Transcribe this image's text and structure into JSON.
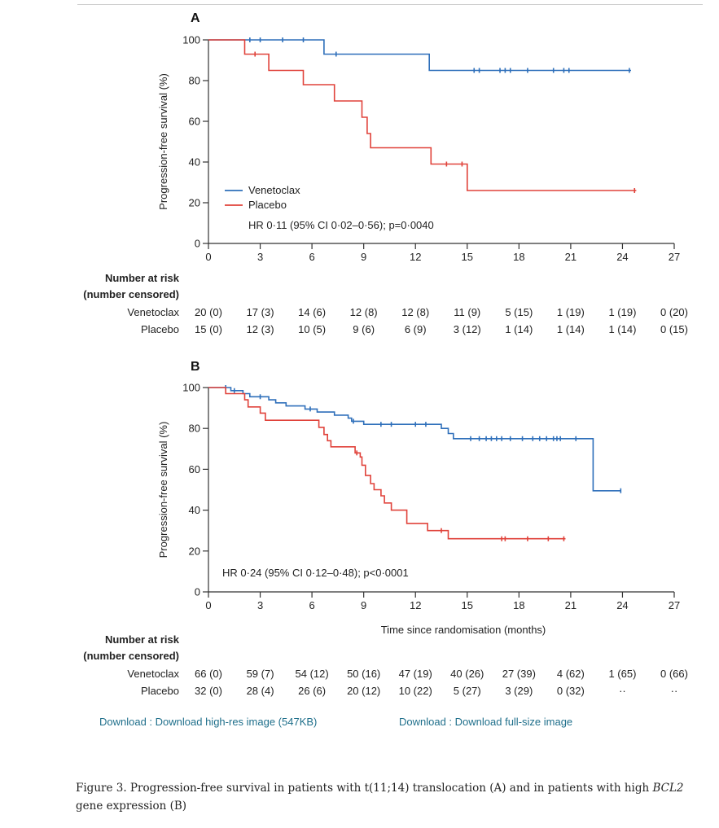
{
  "download": {
    "highres_label": "Download : Download high-res image (547KB)",
    "fullsize_label": "Download : Download full-size image"
  },
  "caption": {
    "part1": "Figure 3. Progression-free survival in patients with t(11;14) translocation (A) and in patients with high ",
    "gene": "BCL2",
    "part2": " gene expression (B)"
  },
  "colors": {
    "venetoclax": "#2e6fba",
    "placebo": "#e0423a"
  },
  "chart_data": [
    {
      "type": "line",
      "panel": "A",
      "title": "",
      "xlabel": "",
      "ylabel": "Progression-free survival (%)",
      "xlim": [
        0,
        27
      ],
      "ylim": [
        0,
        100
      ],
      "xticks": [
        0,
        3,
        6,
        9,
        12,
        15,
        18,
        21,
        24,
        27
      ],
      "yticks": [
        0,
        20,
        40,
        60,
        80,
        100
      ],
      "legend": [
        "Venetoclax",
        "Placebo"
      ],
      "annotation": "HR 0·11 (95% CI 0·02–0·56); p=0·0040",
      "series": [
        {
          "name": "Venetoclax",
          "color_key": "venetoclax",
          "points": [
            [
              0,
              100
            ],
            [
              6.7,
              100
            ],
            [
              6.7,
              93
            ],
            [
              12.8,
              93
            ],
            [
              12.8,
              85
            ],
            [
              24.5,
              85
            ]
          ],
          "censors": [
            [
              2.4,
              100
            ],
            [
              3.0,
              100
            ],
            [
              4.3,
              100
            ],
            [
              5.5,
              100
            ],
            [
              7.4,
              93
            ],
            [
              15.4,
              85
            ],
            [
              15.7,
              85
            ],
            [
              16.9,
              85
            ],
            [
              17.2,
              85
            ],
            [
              17.5,
              85
            ],
            [
              18.5,
              85
            ],
            [
              20.0,
              85
            ],
            [
              20.6,
              85
            ],
            [
              20.9,
              85
            ],
            [
              24.4,
              85
            ]
          ]
        },
        {
          "name": "Placebo",
          "color_key": "placebo",
          "points": [
            [
              0,
              100
            ],
            [
              2.1,
              100
            ],
            [
              2.1,
              93
            ],
            [
              3.5,
              93
            ],
            [
              3.5,
              85
            ],
            [
              5.5,
              85
            ],
            [
              5.5,
              78
            ],
            [
              7.3,
              78
            ],
            [
              7.3,
              70
            ],
            [
              8.9,
              70
            ],
            [
              8.9,
              62
            ],
            [
              9.2,
              62
            ],
            [
              9.2,
              54
            ],
            [
              9.4,
              54
            ],
            [
              9.4,
              47
            ],
            [
              12.9,
              47
            ],
            [
              12.9,
              39
            ],
            [
              15.0,
              39
            ],
            [
              15.0,
              26
            ],
            [
              24.8,
              26
            ]
          ],
          "censors": [
            [
              2.7,
              93
            ],
            [
              13.8,
              39
            ],
            [
              14.7,
              39
            ],
            [
              24.7,
              26
            ]
          ]
        }
      ],
      "risk_table": {
        "title_line1": "Number at risk",
        "title_line2": "(number censored)",
        "rows": [
          {
            "label": "Venetoclax",
            "values": [
              "20 (0)",
              "17 (3)",
              "14 (6)",
              "12 (8)",
              "12 (8)",
              "11 (9)",
              "5 (15)",
              "1 (19)",
              "1 (19)",
              "0 (20)"
            ]
          },
          {
            "label": "Placebo",
            "values": [
              "15 (0)",
              "12 (3)",
              "10 (5)",
              "9 (6)",
              "6 (9)",
              "3 (12)",
              "1 (14)",
              "1 (14)",
              "1 (14)",
              "0 (15)"
            ]
          }
        ]
      }
    },
    {
      "type": "line",
      "panel": "B",
      "title": "",
      "xlabel": "Time since randomisation (months)",
      "ylabel": "Progression-free survival (%)",
      "xlim": [
        0,
        27
      ],
      "ylim": [
        0,
        100
      ],
      "xticks": [
        0,
        3,
        6,
        9,
        12,
        15,
        18,
        21,
        24,
        27
      ],
      "yticks": [
        0,
        20,
        40,
        60,
        80,
        100
      ],
      "annotation": "HR 0·24 (95% CI 0·12–0·48); p<0·0001",
      "series": [
        {
          "name": "Venetoclax",
          "color_key": "venetoclax",
          "points": [
            [
              0,
              100
            ],
            [
              1.3,
              100
            ],
            [
              1.3,
              98.5
            ],
            [
              2.0,
              98.5
            ],
            [
              2.0,
              97
            ],
            [
              2.4,
              97
            ],
            [
              2.4,
              95.5
            ],
            [
              3.5,
              95.5
            ],
            [
              3.5,
              94
            ],
            [
              3.9,
              94
            ],
            [
              3.9,
              92.5
            ],
            [
              4.5,
              92.5
            ],
            [
              4.5,
              91
            ],
            [
              5.6,
              91
            ],
            [
              5.6,
              89.5
            ],
            [
              6.3,
              89.5
            ],
            [
              6.3,
              88
            ],
            [
              7.3,
              88
            ],
            [
              7.3,
              86.5
            ],
            [
              8.1,
              86.5
            ],
            [
              8.1,
              85
            ],
            [
              8.3,
              85
            ],
            [
              8.3,
              83.5
            ],
            [
              9.0,
              83.5
            ],
            [
              9.0,
              82
            ],
            [
              13.5,
              82
            ],
            [
              13.5,
              80
            ],
            [
              13.9,
              80
            ],
            [
              13.9,
              77.5
            ],
            [
              14.2,
              77.5
            ],
            [
              14.2,
              75
            ],
            [
              22.3,
              75
            ],
            [
              22.3,
              49.5
            ],
            [
              23.9,
              49.5
            ]
          ],
          "censors": [
            [
              1.0,
              100
            ],
            [
              1.5,
              98.5
            ],
            [
              3.0,
              95.5
            ],
            [
              5.9,
              89.5
            ],
            [
              8.4,
              83.5
            ],
            [
              10.0,
              82
            ],
            [
              10.6,
              82
            ],
            [
              12.0,
              82
            ],
            [
              12.6,
              82
            ],
            [
              15.2,
              75
            ],
            [
              15.7,
              75
            ],
            [
              16.1,
              75
            ],
            [
              16.4,
              75
            ],
            [
              16.7,
              75
            ],
            [
              17.0,
              75
            ],
            [
              17.5,
              75
            ],
            [
              18.2,
              75
            ],
            [
              18.8,
              75
            ],
            [
              19.2,
              75
            ],
            [
              19.6,
              75
            ],
            [
              20.0,
              75
            ],
            [
              20.2,
              75
            ],
            [
              20.4,
              75
            ],
            [
              21.3,
              75
            ],
            [
              23.9,
              49.5
            ]
          ]
        },
        {
          "name": "Placebo",
          "color_key": "placebo",
          "points": [
            [
              0,
              100
            ],
            [
              1.0,
              100
            ],
            [
              1.0,
              97
            ],
            [
              2.1,
              97
            ],
            [
              2.1,
              94
            ],
            [
              2.3,
              94
            ],
            [
              2.3,
              90.5
            ],
            [
              3.0,
              90.5
            ],
            [
              3.0,
              87.5
            ],
            [
              3.3,
              87.5
            ],
            [
              3.3,
              84
            ],
            [
              6.4,
              84
            ],
            [
              6.4,
              80.5
            ],
            [
              6.7,
              80.5
            ],
            [
              6.7,
              77
            ],
            [
              6.9,
              77
            ],
            [
              6.9,
              74
            ],
            [
              7.1,
              74
            ],
            [
              7.1,
              71
            ],
            [
              8.5,
              71
            ],
            [
              8.5,
              68
            ],
            [
              8.8,
              68
            ],
            [
              8.8,
              66
            ],
            [
              8.9,
              66
            ],
            [
              8.9,
              62
            ],
            [
              9.1,
              62
            ],
            [
              9.1,
              57
            ],
            [
              9.4,
              57
            ],
            [
              9.4,
              53
            ],
            [
              9.6,
              53
            ],
            [
              9.6,
              50
            ],
            [
              10.0,
              50
            ],
            [
              10.0,
              47
            ],
            [
              10.2,
              47
            ],
            [
              10.2,
              43.5
            ],
            [
              10.6,
              43.5
            ],
            [
              10.6,
              40
            ],
            [
              11.5,
              40
            ],
            [
              11.5,
              33.5
            ],
            [
              12.7,
              33.5
            ],
            [
              12.7,
              30
            ],
            [
              13.9,
              30
            ],
            [
              13.9,
              26
            ],
            [
              20.7,
              26
            ]
          ],
          "censors": [
            [
              8.6,
              68
            ],
            [
              13.5,
              30
            ],
            [
              17.0,
              26
            ],
            [
              17.2,
              26
            ],
            [
              18.5,
              26
            ],
            [
              19.7,
              26
            ],
            [
              20.6,
              26
            ]
          ]
        }
      ],
      "risk_table": {
        "title_line1": "Number at risk",
        "title_line2": "(number censored)",
        "rows": [
          {
            "label": "Venetoclax",
            "values": [
              "66 (0)",
              "59 (7)",
              "54 (12)",
              "50 (16)",
              "47 (19)",
              "40 (26)",
              "27 (39)",
              "4 (62)",
              "1 (65)",
              "0 (66)"
            ]
          },
          {
            "label": "Placebo",
            "values": [
              "32 (0)",
              "28 (4)",
              "26 (6)",
              "20 (12)",
              "10 (22)",
              "5 (27)",
              "3 (29)",
              "0 (32)",
              "··",
              "··"
            ]
          }
        ]
      }
    }
  ]
}
